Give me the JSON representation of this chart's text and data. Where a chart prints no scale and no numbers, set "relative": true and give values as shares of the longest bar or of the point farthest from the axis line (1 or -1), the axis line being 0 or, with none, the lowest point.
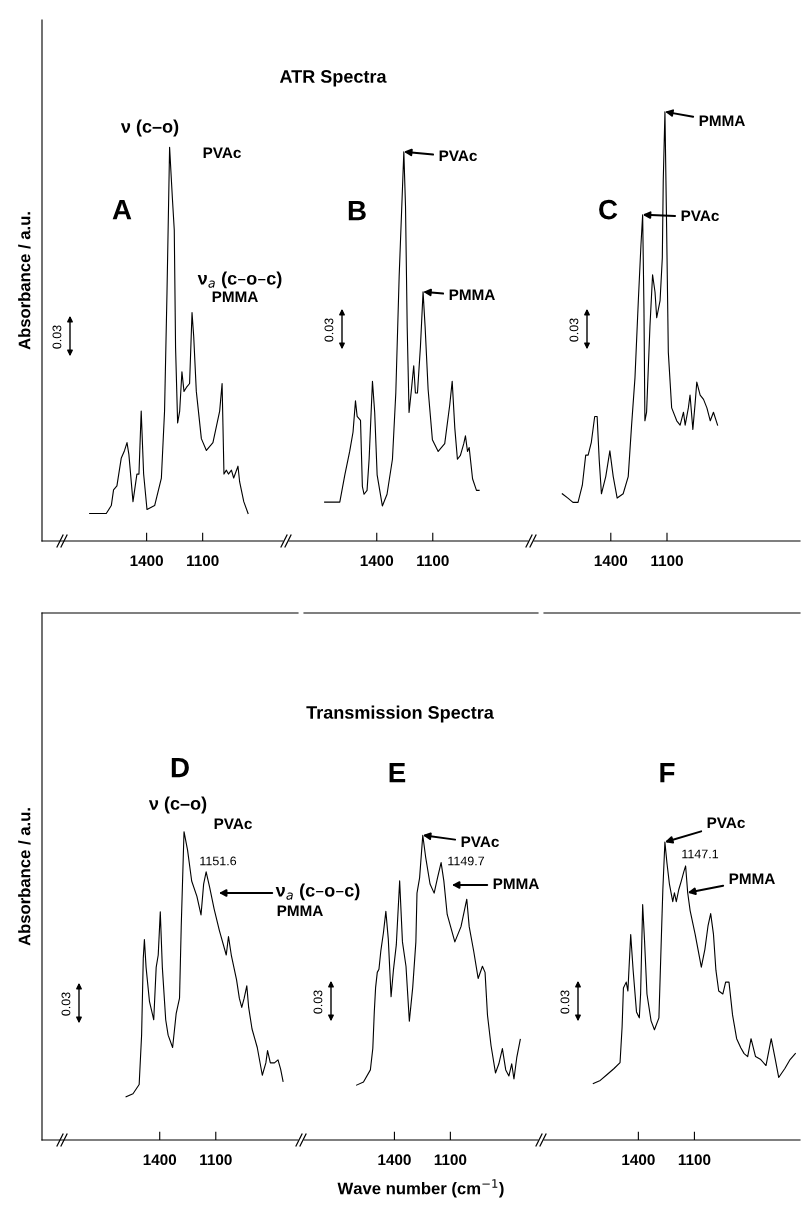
{
  "chart_data": [
    {
      "type": "line",
      "title": "A",
      "ylabel": "Absorbance / a.u.",
      "relative": true,
      "xlim": [
        1960,
        670
      ],
      "xticks": [
        1400,
        1100
      ],
      "series": [
        {
          "color": "#000000",
          "x": [
            1705,
            1661,
            1616,
            1589,
            1577,
            1559,
            1536,
            1518,
            1505,
            1495,
            1473,
            1452,
            1441,
            1429,
            1416,
            1398,
            1357,
            1321,
            1304,
            1291,
            1277,
            1262,
            1252,
            1245,
            1234,
            1223,
            1211,
            1200,
            1187,
            1170,
            1157,
            1148,
            1134,
            1107,
            1080,
            1045,
            1009,
            996,
            986,
            973,
            962,
            946,
            934,
            911,
            902,
            880,
            857
          ],
          "values": [
            0.07,
            0.07,
            0.07,
            0.09,
            0.13,
            0.14,
            0.21,
            0.23,
            0.25,
            0.22,
            0.1,
            0.17,
            0.17,
            0.33,
            0.17,
            0.08,
            0.09,
            0.16,
            0.33,
            0.63,
            1.0,
            0.87,
            0.79,
            0.49,
            0.3,
            0.33,
            0.43,
            0.38,
            0.39,
            0.4,
            0.58,
            0.52,
            0.38,
            0.26,
            0.23,
            0.25,
            0.33,
            0.4,
            0.17,
            0.18,
            0.17,
            0.18,
            0.16,
            0.19,
            0.15,
            0.1,
            0.07
          ]
        }
      ],
      "annotations": [
        {
          "text": "ν (c–o)",
          "x": 1277,
          "y": 1.0
        },
        {
          "text": "PVAc",
          "x": 1277,
          "y": 1.0
        },
        {
          "text": "ν$_{a}$ (c–o–c)",
          "x": 1157,
          "y": 0.58
        },
        {
          "text": "PMMA",
          "x": 1157,
          "y": 0.58
        },
        "0.03"
      ]
    },
    {
      "type": "line",
      "title": "B",
      "relative": true,
      "xlim": [
        1870,
        590
      ],
      "xticks": [
        1400,
        1100
      ],
      "series": [
        {
          "color": "#000000",
          "x": [
            1679,
            1652,
            1625,
            1598,
            1571,
            1545,
            1527,
            1514,
            1505,
            1487,
            1477,
            1468,
            1452,
            1441,
            1423,
            1411,
            1398,
            1370,
            1345,
            1316,
            1298,
            1280,
            1262,
            1255,
            1246,
            1237,
            1227,
            1214,
            1202,
            1193,
            1182,
            1166,
            1152,
            1141,
            1125,
            1102,
            1071,
            1036,
            1009,
            996,
            982,
            968,
            952,
            934,
            925,
            914,
            905,
            887,
            866,
            852
          ],
          "values": [
            0.1,
            0.1,
            0.1,
            0.1,
            0.17,
            0.23,
            0.28,
            0.36,
            0.32,
            0.31,
            0.14,
            0.12,
            0.13,
            0.21,
            0.41,
            0.33,
            0.17,
            0.09,
            0.12,
            0.21,
            0.38,
            0.68,
            0.91,
            1.0,
            0.86,
            0.55,
            0.33,
            0.39,
            0.45,
            0.38,
            0.38,
            0.5,
            0.64,
            0.55,
            0.39,
            0.26,
            0.23,
            0.25,
            0.35,
            0.41,
            0.29,
            0.21,
            0.22,
            0.25,
            0.27,
            0.23,
            0.24,
            0.16,
            0.13,
            0.13
          ]
        }
      ],
      "annotations": [
        "ATR Spectra",
        {
          "text": "PVAc",
          "x": 1255,
          "y": 1.0
        },
        {
          "text": "PMMA",
          "x": 1152,
          "y": 0.64
        },
        "0.03"
      ]
    },
    {
      "type": "line",
      "title": "C",
      "relative": true,
      "xlim": [
        1810,
        390
      ],
      "xticks": [
        1400,
        1100
      ],
      "series": [
        {
          "color": "#000000",
          "x": [
            1659,
            1629,
            1602,
            1575,
            1552,
            1534,
            1521,
            1504,
            1486,
            1473,
            1462,
            1450,
            1427,
            1405,
            1387,
            1366,
            1334,
            1307,
            1289,
            1271,
            1253,
            1239,
            1230,
            1223,
            1218,
            1209,
            1191,
            1177,
            1164,
            1155,
            1137,
            1125,
            1120,
            1111,
            1102,
            1093,
            1075,
            1048,
            1030,
            1012,
            1003,
            986,
            977,
            962,
            950,
            941,
            923,
            905,
            887,
            869,
            852,
            830
          ],
          "values": [
            0.11,
            0.1,
            0.09,
            0.09,
            0.13,
            0.2,
            0.2,
            0.23,
            0.29,
            0.29,
            0.19,
            0.11,
            0.15,
            0.21,
            0.15,
            0.1,
            0.11,
            0.15,
            0.27,
            0.38,
            0.56,
            0.69,
            0.76,
            0.54,
            0.28,
            0.3,
            0.5,
            0.62,
            0.58,
            0.52,
            0.56,
            0.66,
            0.84,
            1.0,
            0.73,
            0.44,
            0.31,
            0.28,
            0.27,
            0.3,
            0.27,
            0.31,
            0.34,
            0.26,
            0.32,
            0.37,
            0.34,
            0.33,
            0.31,
            0.28,
            0.3,
            0.27
          ]
        }
      ],
      "annotations": [
        {
          "text": "PMMA",
          "x": 1111,
          "y": 1.0
        },
        {
          "text": "PVAc",
          "x": 1230,
          "y": 0.76
        },
        "0.03"
      ]
    },
    {
      "type": "line",
      "title": "D",
      "ylabel": "Absorbance / a.u.",
      "relative": true,
      "xlim": [
        2030,
        660
      ],
      "xticks": [
        1400,
        1100
      ],
      "series": [
        {
          "color": "#000000",
          "x": [
            1580,
            1543,
            1510,
            1497,
            1488,
            1482,
            1473,
            1455,
            1432,
            1419,
            1408,
            1397,
            1386,
            1368,
            1355,
            1331,
            1312,
            1294,
            1285,
            1270,
            1251,
            1229,
            1201,
            1179,
            1165,
            1151.6,
            1133,
            1109,
            1081,
            1044,
            1032,
            1017,
            989,
            974,
            961,
            948,
            934,
            924,
            906,
            878,
            851,
            832,
            823,
            808,
            786,
            767,
            753,
            740
          ],
          "values": [
            0.14,
            0.15,
            0.18,
            0.34,
            0.59,
            0.65,
            0.56,
            0.45,
            0.39,
            0.56,
            0.6,
            0.74,
            0.56,
            0.39,
            0.34,
            0.3,
            0.41,
            0.46,
            0.69,
            1.0,
            0.94,
            0.84,
            0.79,
            0.73,
            0.83,
            0.87,
            0.82,
            0.75,
            0.68,
            0.6,
            0.66,
            0.6,
            0.52,
            0.46,
            0.43,
            0.46,
            0.5,
            0.43,
            0.36,
            0.3,
            0.21,
            0.25,
            0.29,
            0.25,
            0.25,
            0.26,
            0.23,
            0.19
          ]
        }
      ],
      "annotations": [
        {
          "text": "ν (c–o)",
          "x": 1270,
          "y": 1.0
        },
        {
          "text": "PVAc",
          "x": 1270,
          "y": 1.0
        },
        {
          "text": "1151.6",
          "x": 1151.6,
          "y": 0.87
        },
        "ν$_{a}$ (c–o–c)",
        "PMMA",
        "0.03"
      ]
    },
    {
      "type": "line",
      "title": "E",
      "xlabel": "Wave number (cm$^{−1}$)",
      "relative": true,
      "xlim": [
        1885,
        630
      ],
      "xticks": [
        1400,
        1100
      ],
      "series": [
        {
          "color": "#000000",
          "x": [
            1603,
            1566,
            1529,
            1516,
            1508,
            1501,
            1492,
            1483,
            1473,
            1459,
            1446,
            1433,
            1418,
            1405,
            1390,
            1372,
            1357,
            1338,
            1320,
            1302,
            1285,
            1279,
            1265,
            1248,
            1233,
            1209,
            1187,
            1169,
            1149.7,
            1135,
            1117,
            1076,
            1043,
            1012,
            999,
            975,
            951,
            928,
            914,
            901,
            882,
            858,
            840,
            821,
            803,
            786,
            771,
            759,
            744,
            725
          ],
          "values": [
            0.18,
            0.19,
            0.23,
            0.3,
            0.42,
            0.5,
            0.55,
            0.56,
            0.62,
            0.68,
            0.75,
            0.66,
            0.47,
            0.56,
            0.64,
            0.85,
            0.65,
            0.57,
            0.39,
            0.5,
            0.65,
            0.81,
            0.86,
            1.0,
            0.93,
            0.84,
            0.81,
            0.86,
            0.91,
            0.85,
            0.74,
            0.65,
            0.7,
            0.79,
            0.7,
            0.62,
            0.53,
            0.57,
            0.55,
            0.41,
            0.31,
            0.22,
            0.25,
            0.3,
            0.23,
            0.21,
            0.25,
            0.2,
            0.27,
            0.33
          ]
        }
      ],
      "annotations": [
        "Transmission Spectra",
        {
          "text": "PVAc",
          "x": 1248,
          "y": 1.0
        },
        {
          "text": "1149.7",
          "x": 1149.7,
          "y": 0.91
        },
        "PMMA",
        "0.03"
      ]
    },
    {
      "type": "line",
      "title": "F",
      "relative": true,
      "xlim": [
        1905,
        535
      ],
      "xticks": [
        1400,
        1100
      ],
      "series": [
        {
          "color": "#000000",
          "x": [
            1641,
            1604,
            1567,
            1530,
            1498,
            1487,
            1480,
            1465,
            1456,
            1441,
            1428,
            1410,
            1395,
            1388,
            1377,
            1367,
            1354,
            1332,
            1314,
            1290,
            1275,
            1269,
            1258,
            1247,
            1234,
            1216,
            1207,
            1197,
            1184,
            1170,
            1157,
            1147.1,
            1136,
            1123,
            1096,
            1063,
            1044,
            1027,
            1013,
            998,
            985,
            970,
            948,
            933,
            915,
            896,
            874,
            852,
            834,
            815,
            797,
            773,
            745,
            717,
            689,
            667,
            649,
            616,
            588,
            560
          ],
          "values": [
            0.19,
            0.2,
            0.22,
            0.24,
            0.26,
            0.38,
            0.51,
            0.53,
            0.5,
            0.69,
            0.57,
            0.43,
            0.41,
            0.49,
            0.79,
            0.67,
            0.49,
            0.4,
            0.37,
            0.41,
            0.72,
            0.84,
            1.0,
            0.93,
            0.86,
            0.8,
            0.83,
            0.8,
            0.84,
            0.87,
            0.9,
            0.92,
            0.83,
            0.77,
            0.69,
            0.58,
            0.64,
            0.72,
            0.76,
            0.69,
            0.57,
            0.5,
            0.49,
            0.53,
            0.53,
            0.42,
            0.34,
            0.31,
            0.29,
            0.28,
            0.34,
            0.28,
            0.27,
            0.25,
            0.34,
            0.27,
            0.21,
            0.24,
            0.27,
            0.29
          ]
        }
      ],
      "annotations": [
        {
          "text": "PVAc",
          "x": 1258,
          "y": 1.0
        },
        {
          "text": "1147.1",
          "x": 1147.1,
          "y": 0.92
        },
        {
          "text": "PMMA",
          "x": 1136,
          "y": 0.83
        },
        "0.03"
      ]
    }
  ]
}
